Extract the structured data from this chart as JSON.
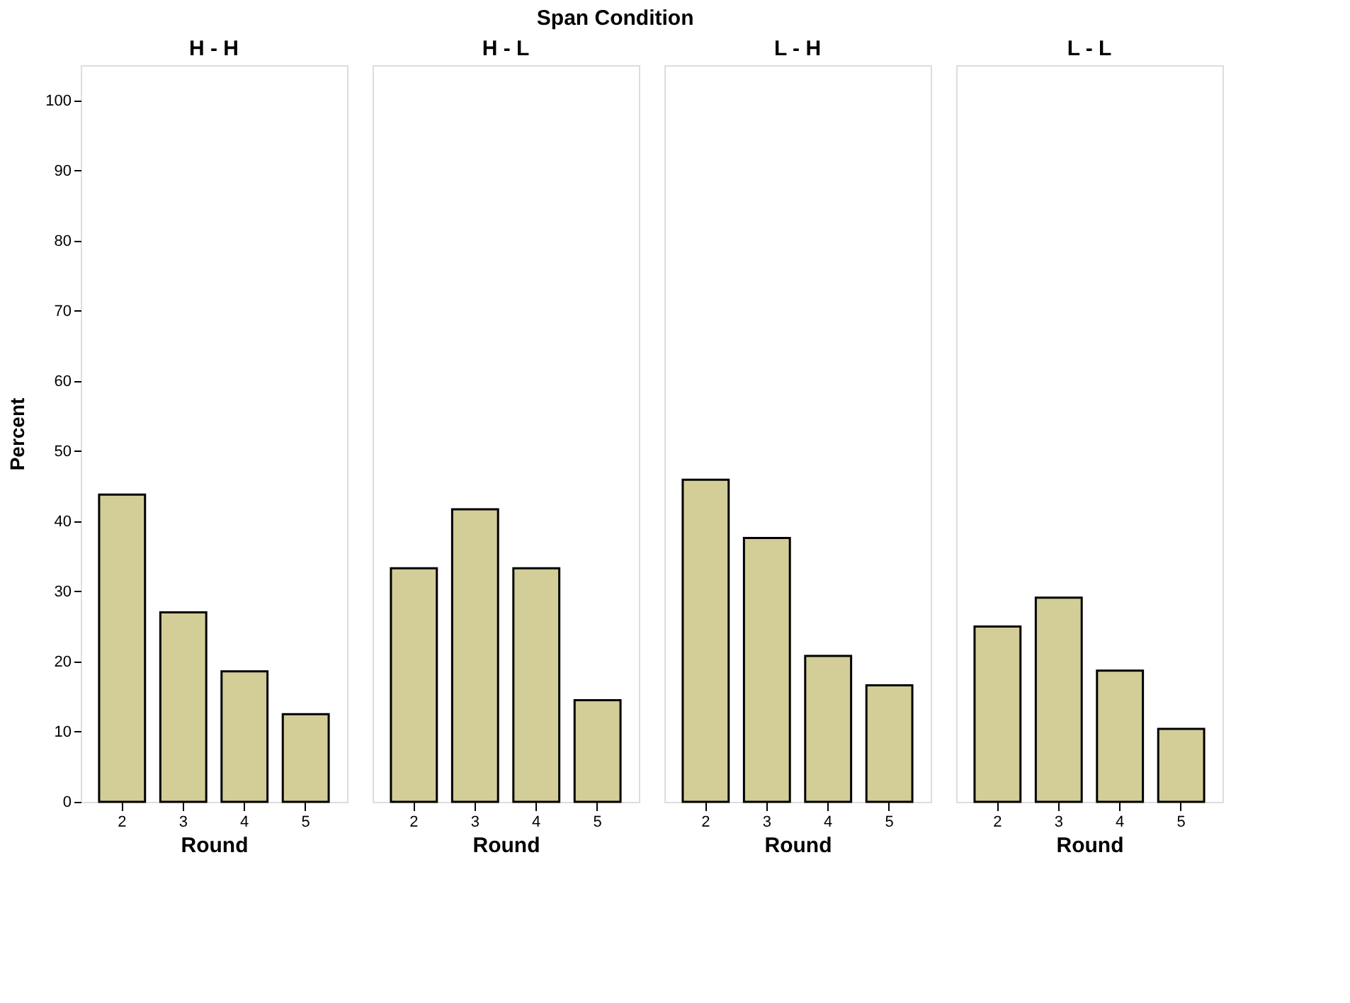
{
  "chart_data": [
    {
      "type": "bar",
      "title": "H - H",
      "annotations": [
        "Span Condition"
      ],
      "xlabel": "Round",
      "ylabel": "Percent",
      "categories": [
        "2",
        "3",
        "4",
        "5"
      ],
      "values": [
        43.8,
        27.0,
        18.6,
        12.5
      ],
      "color": "#d3cd97",
      "ylim": [
        0,
        105
      ],
      "yticks": [
        0,
        10,
        20,
        30,
        40,
        50,
        60,
        70,
        80,
        90,
        100
      ],
      "grid": false
    },
    {
      "type": "bar",
      "title": "H - L",
      "xlabel": "Round",
      "categories": [
        "2",
        "3",
        "4",
        "5"
      ],
      "values": [
        33.3,
        41.7,
        33.3,
        14.5
      ],
      "color": "#d3cd97",
      "ylim": [
        0,
        105
      ],
      "tick_labels": "x",
      "grid": false
    },
    {
      "type": "bar",
      "title": "L - H",
      "xlabel": "Round",
      "categories": [
        "2",
        "3",
        "4",
        "5"
      ],
      "values": [
        45.9,
        37.6,
        20.8,
        16.6
      ],
      "color": "#d3cd97",
      "ylim": [
        0,
        105
      ],
      "tick_labels": "x",
      "grid": false
    },
    {
      "type": "bar",
      "title": "L - L",
      "xlabel": "Round",
      "categories": [
        "2",
        "3",
        "4",
        "5"
      ],
      "values": [
        25.0,
        29.1,
        18.7,
        10.4
      ],
      "color": "#d3cd97",
      "ylim": [
        0,
        105
      ],
      "tick_labels": "x",
      "grid": false
    }
  ]
}
